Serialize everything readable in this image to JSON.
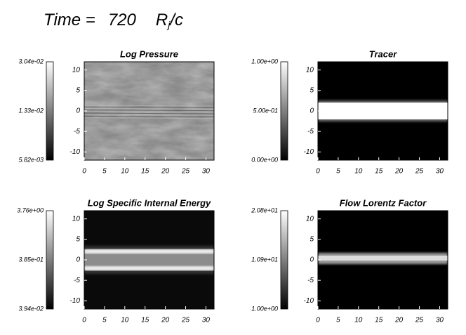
{
  "title": {
    "label": "Time =",
    "time": "720",
    "unit_base": "R",
    "unit_sub": "j",
    "unit_rest": "/c"
  },
  "panels": [
    {
      "title": "Log Pressure",
      "colorbar": [
        "3.04e-02",
        "1.33e-02",
        "5.82e-03"
      ],
      "xlim": [
        0,
        32
      ],
      "ylim": [
        -12,
        12
      ],
      "xticks": [
        0,
        5,
        10,
        15,
        20,
        25,
        30
      ],
      "yticks": [
        10,
        5,
        0,
        -5,
        -10
      ]
    },
    {
      "title": "Tracer",
      "colorbar": [
        "1.00e+00",
        "5.00e-01",
        "0.00e+00"
      ],
      "xlim": [
        0,
        32
      ],
      "ylim": [
        -12,
        12
      ],
      "xticks": [
        0,
        5,
        10,
        15,
        20,
        25,
        30
      ],
      "yticks": [
        10,
        5,
        0,
        -5,
        -10
      ]
    },
    {
      "title": "Log Specific Internal Energy",
      "colorbar": [
        "3.76e+00",
        "3.85e-01",
        "3.94e-02"
      ],
      "xlim": [
        0,
        32
      ],
      "ylim": [
        -12,
        12
      ],
      "xticks": [
        0,
        5,
        10,
        15,
        20,
        25,
        30
      ],
      "yticks": [
        10,
        5,
        0,
        -5,
        -10
      ]
    },
    {
      "title": "Flow Lorentz Factor",
      "colorbar": [
        "2.08e+01",
        "1.09e+01",
        "1.00e+00"
      ],
      "xlim": [
        0,
        32
      ],
      "ylim": [
        -12,
        12
      ],
      "xticks": [
        0,
        5,
        10,
        15,
        20,
        25,
        30
      ],
      "yticks": [
        10,
        5,
        0,
        -5,
        -10
      ]
    }
  ]
}
